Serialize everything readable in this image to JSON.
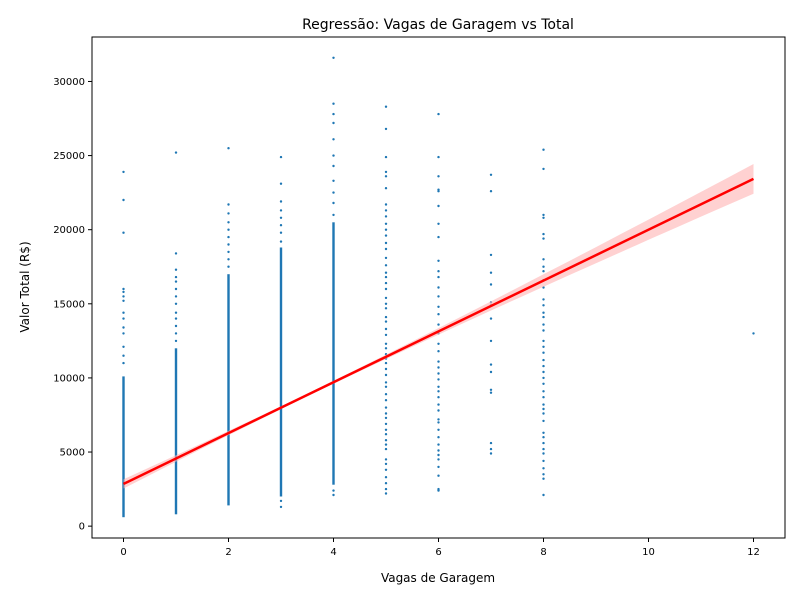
{
  "chart_data": {
    "type": "scatter",
    "title": "Regressão: Vagas de Garagem vs Total",
    "xlabel": "Vagas de Garagem",
    "ylabel": "Valor Total (R$)",
    "xlim": [
      -0.6,
      12.6
    ],
    "ylim": [
      -800,
      33000
    ],
    "xticks": [
      0,
      2,
      4,
      6,
      8,
      10,
      12
    ],
    "yticks": [
      0,
      5000,
      10000,
      15000,
      20000,
      25000,
      30000
    ],
    "grid": false,
    "legend": "none",
    "point_color": "#1f77b4",
    "line_color": "#ff0000",
    "band_color": "#ffb3b3",
    "columns": [
      {
        "x": 0,
        "band": [
          600,
          10100
        ],
        "values": [
          11000,
          11500,
          12100,
          13000,
          13400,
          14000,
          14400,
          15200,
          15500,
          15800,
          16000,
          19800,
          22000,
          23900
        ]
      },
      {
        "x": 1,
        "band": [
          800,
          12000
        ],
        "values": [
          12500,
          13000,
          13500,
          14000,
          14400,
          15000,
          15500,
          16000,
          16500,
          16800,
          17300,
          18400,
          25200
        ]
      },
      {
        "x": 2,
        "band": [
          1400,
          17000
        ],
        "values": [
          17500,
          18000,
          18500,
          19000,
          19500,
          20000,
          20500,
          21100,
          21700,
          25500
        ]
      },
      {
        "x": 3,
        "band": [
          2000,
          18800
        ],
        "values": [
          1300,
          1700,
          19200,
          19800,
          20300,
          20800,
          21300,
          21900,
          23100,
          24900
        ]
      },
      {
        "x": 4,
        "band": [
          2800,
          20500
        ],
        "values": [
          2100,
          2400,
          21000,
          21800,
          22500,
          23300,
          24300,
          25000,
          26100,
          27200,
          27800,
          28500,
          31600
        ]
      },
      {
        "x": 5,
        "values": [
          2200,
          2500,
          2900,
          3300,
          3800,
          4200,
          4500,
          5200,
          5500,
          5800,
          6200,
          6500,
          6900,
          7300,
          7600,
          8000,
          8500,
          8900,
          9400,
          9700,
          10200,
          10600,
          11000,
          11300,
          11600,
          12000,
          12300,
          12900,
          13300,
          13800,
          14100,
          14700,
          15000,
          15400,
          16000,
          16400,
          16800,
          17100,
          17600,
          18100,
          18700,
          19100,
          19600,
          20000,
          20400,
          20900,
          21300,
          21700,
          22800,
          23600,
          23900,
          24900,
          26800,
          28300
        ]
      },
      {
        "x": 6,
        "values": [
          2400,
          2500,
          3400,
          4000,
          4500,
          4800,
          5100,
          5500,
          6000,
          6500,
          7000,
          7200,
          7800,
          8200,
          8700,
          9100,
          9400,
          9900,
          10300,
          10700,
          11100,
          11800,
          12300,
          13000,
          13600,
          14300,
          14800,
          15500,
          16100,
          16800,
          17200,
          17900,
          19500,
          20400,
          21600,
          22600,
          22700,
          23600,
          24900,
          27800
        ]
      },
      {
        "x": 7,
        "values": [
          4900,
          5200,
          5600,
          9000,
          9200,
          10400,
          10900,
          12500,
          14000,
          14900,
          15100,
          16300,
          17100,
          18300,
          22600,
          23700
        ]
      },
      {
        "x": 8,
        "values": [
          2100,
          3200,
          3500,
          3900,
          4400,
          4900,
          5200,
          5600,
          6000,
          6300,
          7100,
          7600,
          7900,
          8200,
          8700,
          9100,
          9600,
          10000,
          10400,
          10800,
          11200,
          11700,
          12100,
          12500,
          13200,
          13600,
          14100,
          14400,
          14900,
          15300,
          16100,
          16600,
          17200,
          17500,
          18000,
          19400,
          19700,
          20800,
          21000,
          24100,
          25400
        ]
      },
      {
        "x": 12,
        "values": [
          13000
        ]
      }
    ],
    "regression": {
      "intercept": 2850,
      "slope": 1715,
      "ci_halfwidth": [
        90,
        1000
      ]
    }
  }
}
